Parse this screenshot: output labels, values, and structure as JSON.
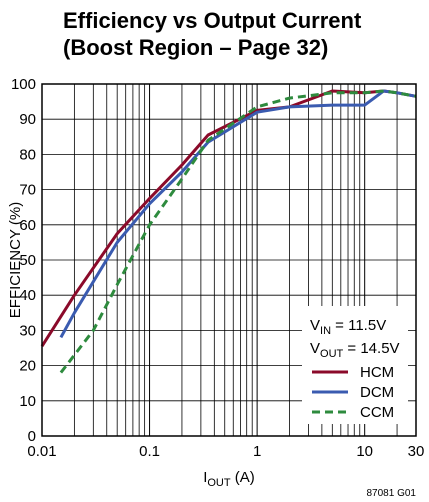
{
  "chart_data": {
    "type": "line",
    "title_lines": [
      "Efficiency vs Output Current",
      "(Boost Region – Page 32)"
    ],
    "xlabel": {
      "main": "I",
      "sub": "OUT",
      "rest": " (A)"
    },
    "ylabel": "EFFICIENCY (%)",
    "x_scale": "log",
    "xlim": [
      0.01,
      30
    ],
    "ylim": [
      0,
      100
    ],
    "x_ticks": [
      "0.01",
      "0.1",
      "1",
      "10",
      "30"
    ],
    "x_tick_values": [
      0.01,
      0.1,
      1,
      10,
      30
    ],
    "y_ticks": [
      "0",
      "10",
      "20",
      "30",
      "40",
      "50",
      "60",
      "70",
      "80",
      "90",
      "100"
    ],
    "grid": true,
    "conditions": [
      {
        "main": "V",
        "sub": "IN",
        "rest": " = 11.5V"
      },
      {
        "main": "V",
        "sub": "OUT",
        "rest": " = 14.5V"
      }
    ],
    "legend_position": "lower-right",
    "series": [
      {
        "name": "HCM",
        "color": "#8b0a2a",
        "style": "solid",
        "x": [
          0.01,
          0.02,
          0.05,
          0.1,
          0.2,
          0.35,
          1,
          2,
          5,
          10,
          15,
          20,
          30
        ],
        "y": [
          25.5,
          40,
          57.5,
          67.5,
          77,
          85.5,
          92.5,
          93.5,
          98,
          97.5,
          98,
          97.5,
          96.5
        ]
      },
      {
        "name": "DCM",
        "color": "#3a5bb0",
        "style": "solid",
        "x": [
          0.015,
          0.02,
          0.05,
          0.1,
          0.2,
          0.35,
          1,
          2,
          5,
          10,
          15,
          20,
          30
        ],
        "y": [
          28,
          35,
          55,
          66,
          75,
          83.5,
          92,
          93.5,
          94,
          94,
          98,
          97.5,
          96.5
        ]
      },
      {
        "name": "CCM",
        "color": "#2e8b3e",
        "style": "dashed",
        "x": [
          0.015,
          0.03,
          0.05,
          0.1,
          0.2,
          0.35,
          1,
          2,
          5,
          10,
          15,
          20,
          30
        ],
        "y": [
          18,
          30,
          43,
          60,
          73,
          84,
          93.5,
          96,
          97.5,
          97.5,
          98,
          97.5,
          96.5
        ]
      }
    ]
  },
  "figure_id": "87081 G01"
}
